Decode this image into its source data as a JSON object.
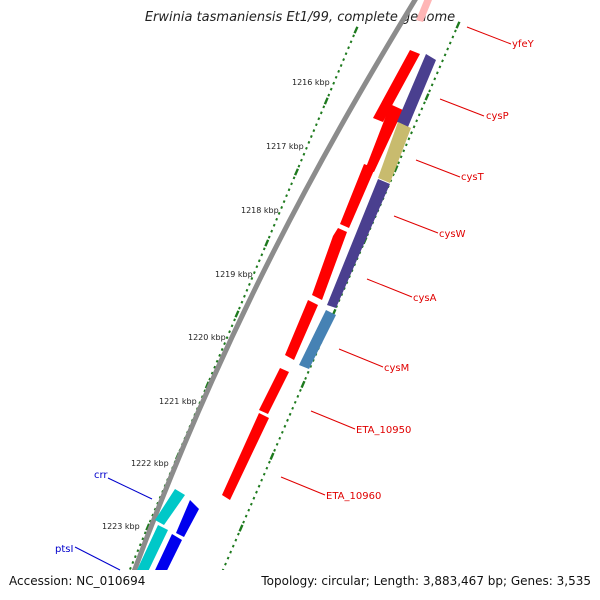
{
  "title": "Erwinia tasmaniensis Et1/99, complete genome",
  "accession": "Accession: NC_010694",
  "topology": "Topology: circular; Length: 3,883,467 bp; Genes: 3,535",
  "colors": {
    "backbone": "#8c8c8c",
    "tick_green": "#1e7a1e",
    "label_red": "#e00000",
    "label_blue": "#0000cc",
    "gene_red": "#ff0000",
    "gene_purple": "#4a3f8f",
    "gene_khaki": "#c8bb6e",
    "gene_steelblue": "#4682b4",
    "gene_cyan": "#00c8c8",
    "gene_blue": "#0000ee",
    "gene_pink": "#ffb6b6"
  },
  "kbp_ticks": [
    "1216 kbp",
    "1217 kbp",
    "1218 kbp",
    "1219 kbp",
    "1220 kbp",
    "1221 kbp",
    "1222 kbp",
    "1223 kbp"
  ],
  "gene_labels": [
    {
      "text": "yfeY",
      "color": "red"
    },
    {
      "text": "cysP",
      "color": "red"
    },
    {
      "text": "cysT",
      "color": "red"
    },
    {
      "text": "cysW",
      "color": "red"
    },
    {
      "text": "cysA",
      "color": "red"
    },
    {
      "text": "cysM",
      "color": "red"
    },
    {
      "text": "ETA_10950",
      "color": "red"
    },
    {
      "text": "ETA_10960",
      "color": "red"
    },
    {
      "text": "crr",
      "color": "blue"
    },
    {
      "text": "ptsI",
      "color": "blue"
    }
  ]
}
